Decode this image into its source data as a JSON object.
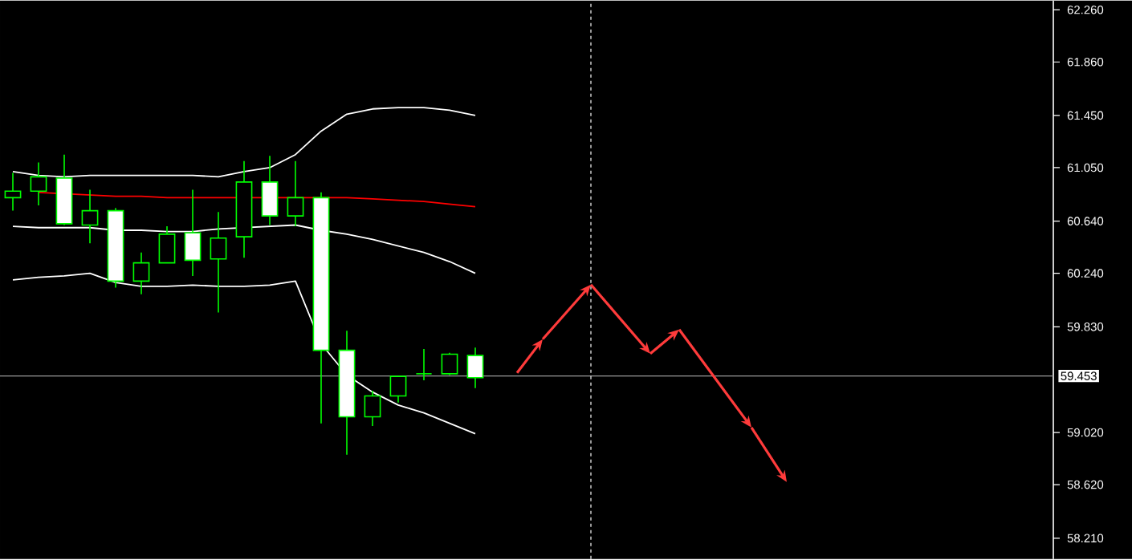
{
  "chart_data": {
    "type": "candlestick",
    "categories": [
      null,
      null,
      null,
      null,
      null,
      null,
      null,
      null,
      null,
      null,
      null,
      null,
      null,
      null,
      null,
      null,
      null,
      null,
      null,
      null,
      null,
      null,
      null,
      null,
      null,
      null,
      null,
      null,
      null,
      null,
      null,
      null,
      null,
      null,
      null,
      null,
      null,
      null,
      null,
      null,
      null
    ],
    "ohlc": [
      [
        60.82,
        61.01,
        60.72,
        60.87
      ],
      [
        60.87,
        61.09,
        60.76,
        60.98
      ],
      [
        60.97,
        61.15,
        60.61,
        60.62
      ],
      [
        60.61,
        60.88,
        60.47,
        60.72
      ],
      [
        60.72,
        60.74,
        60.13,
        60.18
      ],
      [
        60.18,
        60.4,
        60.08,
        60.32
      ],
      [
        60.32,
        60.6,
        60.32,
        60.54
      ],
      [
        60.55,
        60.88,
        60.22,
        60.34
      ],
      [
        60.35,
        60.71,
        59.94,
        60.51
      ],
      [
        60.52,
        61.1,
        60.36,
        60.94
      ],
      [
        60.94,
        61.14,
        60.61,
        60.68
      ],
      [
        60.68,
        61.1,
        60.6,
        60.82
      ],
      [
        60.82,
        60.86,
        59.09,
        59.65
      ],
      [
        59.65,
        59.8,
        58.85,
        59.14
      ],
      [
        59.14,
        59.34,
        59.07,
        59.3
      ],
      [
        59.3,
        59.45,
        59.25,
        59.45
      ],
      [
        59.47,
        59.66,
        59.42,
        59.47
      ],
      [
        59.47,
        59.63,
        59.46,
        59.62
      ],
      [
        59.61,
        59.67,
        59.36,
        59.44
      ],
      null,
      null,
      null,
      null,
      null,
      null,
      null,
      null,
      null,
      null,
      null,
      null,
      null,
      null,
      null,
      null,
      null,
      null,
      null,
      null,
      null,
      null
    ],
    "series": [
      {
        "type": "line",
        "color": "#ffffff",
        "values": [
          61.02,
          60.99,
          60.98,
          60.99,
          60.99,
          60.99,
          60.99,
          60.99,
          60.98,
          61.02,
          61.05,
          61.15,
          61.33,
          61.46,
          61.5,
          61.51,
          61.51,
          61.49,
          61.45,
          null,
          null,
          null,
          null,
          null,
          null,
          null,
          null,
          null,
          null,
          null,
          null,
          null,
          null,
          null,
          null,
          null,
          null,
          null,
          null,
          null,
          null
        ]
      },
      {
        "type": "line",
        "color": "#ff0000",
        "values": [
          null,
          60.86,
          null,
          60.84,
          60.83,
          60.83,
          60.82,
          60.82,
          60.82,
          null,
          null,
          null,
          null,
          60.82,
          60.81,
          60.8,
          60.79,
          60.77,
          60.75,
          null,
          null,
          null,
          null,
          null,
          null,
          null,
          null,
          null,
          null,
          null,
          null,
          null,
          null,
          null,
          null,
          null,
          null,
          null,
          null,
          null,
          null
        ]
      },
      {
        "type": "line",
        "color": "#ffffff",
        "values": [
          60.6,
          60.59,
          60.59,
          60.59,
          60.57,
          60.57,
          60.56,
          60.56,
          60.58,
          null,
          60.6,
          60.61,
          60.57,
          60.54,
          60.5,
          60.45,
          60.4,
          60.33,
          60.24,
          null,
          null,
          null,
          null,
          null,
          null,
          null,
          null,
          null,
          null,
          null,
          null,
          null,
          null,
          null,
          null,
          null,
          null,
          null,
          null,
          null,
          null
        ]
      },
      {
        "type": "line",
        "color": "#ffffff",
        "values": [
          60.19,
          60.21,
          60.22,
          60.24,
          60.17,
          60.14,
          60.14,
          60.15,
          60.14,
          60.14,
          60.15,
          60.18,
          59.7,
          59.46,
          59.33,
          59.23,
          59.17,
          59.09,
          59.01,
          null,
          null,
          null,
          null,
          null,
          null,
          null,
          null,
          null,
          null,
          null,
          null,
          null,
          null,
          null,
          null,
          null,
          null,
          null,
          null,
          null,
          null
        ]
      }
    ],
    "ylim": [
      58.05,
      62.33
    ],
    "yticks": [
      {
        "value": 62.26,
        "label": "62.260"
      },
      {
        "value": 61.86,
        "label": "61.860"
      },
      {
        "value": 61.45,
        "label": "61.450"
      },
      {
        "value": 61.05,
        "label": "61.050"
      },
      {
        "value": 60.64,
        "label": "60.640"
      },
      {
        "value": 60.24,
        "label": "60.240"
      },
      {
        "value": 59.83,
        "label": "59.830"
      },
      {
        "value": 59.02,
        "label": "59.020"
      },
      {
        "value": 58.62,
        "label": "58.620"
      },
      {
        "value": 58.21,
        "label": "58.210"
      }
    ],
    "tick_labels": "y",
    "ref_lines": [
      {
        "axis": "y",
        "value": 59.453,
        "label": "59.453",
        "color": "#9a9a9a"
      }
    ]
  }
}
